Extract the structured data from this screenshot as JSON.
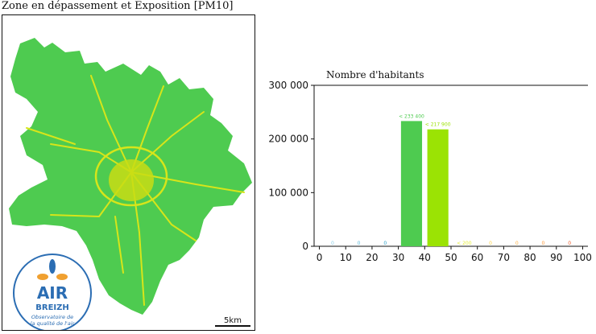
{
  "map": {
    "title": "Zone en dépassement et Exposition [PM10]",
    "scale_label": "5km",
    "logo": {
      "line1": "AIR",
      "line2": "BREIZH",
      "tagline1": "Observatoire de",
      "tagline2": "la qualité de l'air"
    },
    "colors": {
      "land": "#4ecb50",
      "roads": "#d7e51a",
      "center": "#c9dd14",
      "logo_blue": "#2b6db3",
      "logo_orange": "#f0a030"
    }
  },
  "chart_data": {
    "type": "bar",
    "title": "Nombre d'habitants",
    "xlim": [
      -2,
      102
    ],
    "ylim": [
      0,
      300000
    ],
    "xticks": [
      "0",
      "10",
      "20",
      "30",
      "40",
      "50",
      "60",
      "70",
      "80",
      "90",
      "100"
    ],
    "yticks": [
      "0",
      "100 000",
      "200 000",
      "300 000"
    ],
    "bars": [
      {
        "x": 5,
        "value": 0,
        "label": "0",
        "color": "#8fd0e8"
      },
      {
        "x": 15,
        "value": 0,
        "label": "0",
        "color": "#5ab8d8"
      },
      {
        "x": 25,
        "value": 0,
        "label": "0",
        "color": "#2ca0c8"
      },
      {
        "x": 35,
        "value": 233400,
        "label": "< 233 400",
        "color": "#4ecb50"
      },
      {
        "x": 45,
        "value": 217900,
        "label": "< 217 900",
        "color": "#9be304"
      },
      {
        "x": 55,
        "value": 0,
        "label": "< 200",
        "color": "#e6ed3a"
      },
      {
        "x": 65,
        "value": 0,
        "label": "0",
        "color": "#ffd54a"
      },
      {
        "x": 75,
        "value": 0,
        "label": "0",
        "color": "#ffb347"
      },
      {
        "x": 85,
        "value": 0,
        "label": "0",
        "color": "#ff9a3c"
      },
      {
        "x": 95,
        "value": 0,
        "label": "0",
        "color": "#ef5a28"
      }
    ]
  }
}
